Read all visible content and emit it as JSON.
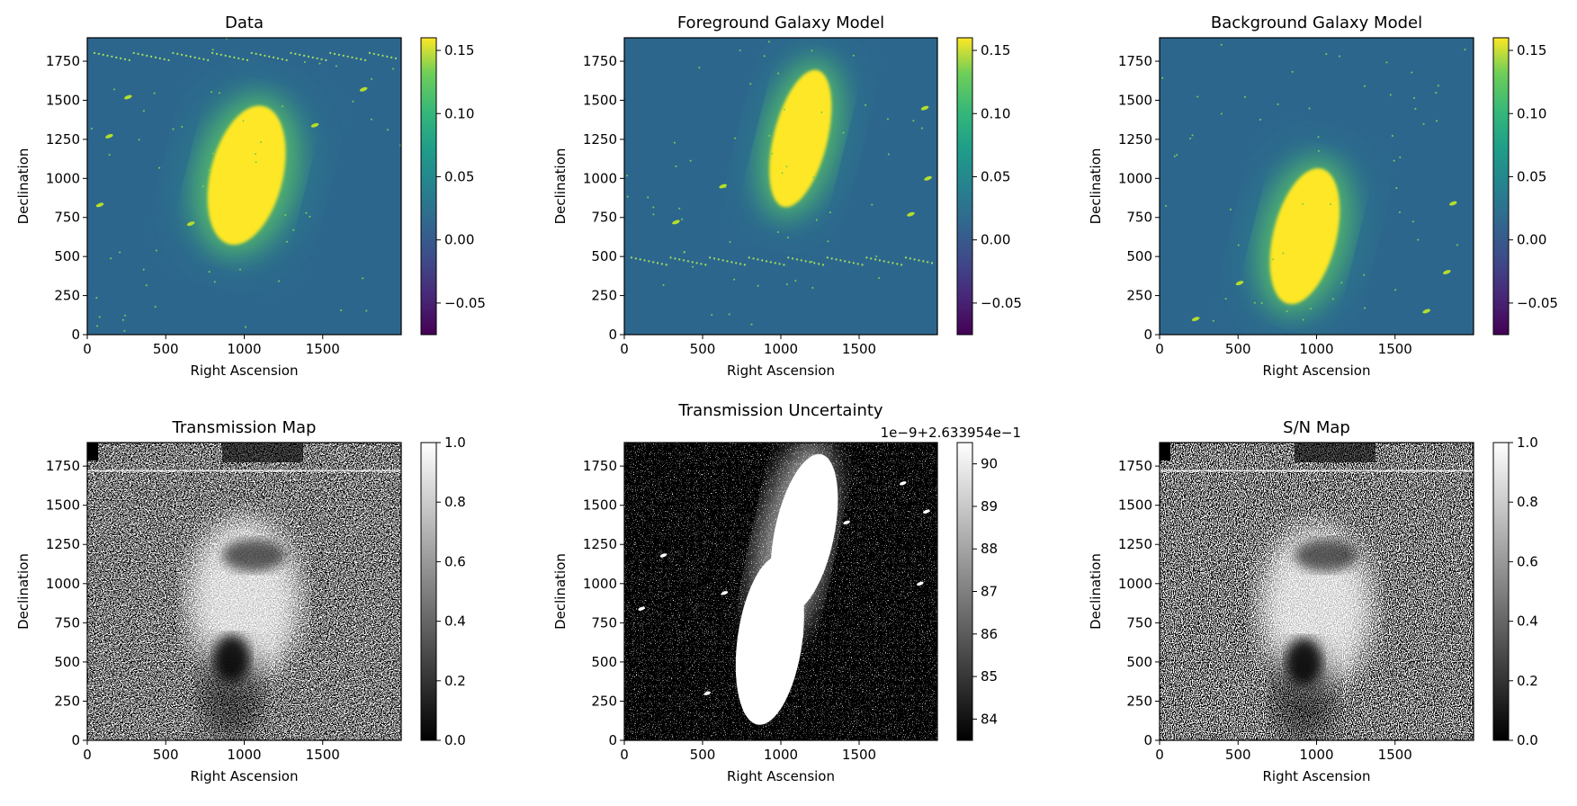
{
  "chart_data": [
    {
      "type": "heatmap",
      "title": "Data",
      "xlabel": "Right Ascension",
      "ylabel": "Declination",
      "xlim": [
        0,
        2000
      ],
      "ylim": [
        0,
        1900
      ],
      "xticks": [
        0,
        500,
        1000,
        1500
      ],
      "yticks": [
        0,
        250,
        500,
        750,
        1000,
        1250,
        1500,
        1750
      ],
      "colormap": "viridis",
      "colorbar": {
        "range": [
          -0.075,
          0.16
        ],
        "ticks": [
          -0.05,
          0.0,
          0.05,
          0.1,
          0.15
        ],
        "tick_labels": [
          "−0.05",
          "0.00",
          "0.05",
          "0.10",
          "0.15"
        ]
      },
      "features": {
        "galaxy": {
          "shape": "tilted elongated blob",
          "x_range": [
            780,
            1250
          ],
          "y_range": [
            560,
            1480
          ]
        },
        "streak": {
          "y": 1780
        },
        "point_sources": [
          [
            260,
            1520
          ],
          [
            140,
            1270
          ],
          [
            1450,
            1340
          ],
          [
            1760,
            1570
          ],
          [
            80,
            830
          ],
          [
            660,
            710
          ]
        ]
      }
    },
    {
      "type": "heatmap",
      "title": "Foreground Galaxy Model",
      "xlabel": "Right Ascension",
      "ylabel": "Declination",
      "xlim": [
        0,
        2000
      ],
      "ylim": [
        0,
        1900
      ],
      "xticks": [
        0,
        500,
        1000,
        1500
      ],
      "yticks": [
        0,
        250,
        500,
        750,
        1000,
        1250,
        1500,
        1750
      ],
      "colormap": "viridis",
      "colorbar": {
        "range": [
          -0.075,
          0.16
        ],
        "ticks": [
          -0.05,
          0.0,
          0.05,
          0.1,
          0.15
        ],
        "tick_labels": [
          "−0.05",
          "0.00",
          "0.05",
          "0.10",
          "0.15"
        ]
      },
      "features": {
        "galaxy": {
          "shape": "tilted elongated blob",
          "x_range": [
            950,
            1300
          ],
          "y_range": [
            800,
            1710
          ]
        },
        "streak": {
          "y": 470
        },
        "point_sources": [
          [
            630,
            950
          ],
          [
            330,
            720
          ],
          [
            1830,
            770
          ],
          [
            1940,
            1000
          ],
          [
            1920,
            1450
          ]
        ]
      }
    },
    {
      "type": "heatmap",
      "title": "Background Galaxy Model",
      "xlabel": "Right Ascension",
      "ylabel": "Declination",
      "xlim": [
        0,
        2000
      ],
      "ylim": [
        0,
        1900
      ],
      "xticks": [
        0,
        500,
        1000,
        1500
      ],
      "yticks": [
        0,
        250,
        500,
        750,
        1000,
        1250,
        1500,
        1750
      ],
      "colormap": "viridis",
      "colorbar": {
        "range": [
          -0.075,
          0.16
        ],
        "ticks": [
          -0.05,
          0.0,
          0.05,
          0.1,
          0.15
        ],
        "tick_labels": [
          "−0.05",
          "0.00",
          "0.05",
          "0.10",
          "0.15"
        ]
      },
      "features": {
        "galaxy": {
          "shape": "tilted elongated blob",
          "x_range": [
            720,
            1130
          ],
          "y_range": [
            180,
            1080
          ]
        },
        "point_sources": [
          [
            510,
            330
          ],
          [
            230,
            100
          ],
          [
            1870,
            840
          ],
          [
            1830,
            400
          ],
          [
            1700,
            150
          ]
        ]
      }
    },
    {
      "type": "heatmap",
      "title": "Transmission Map",
      "xlabel": "Right Ascension",
      "ylabel": "Declination",
      "xlim": [
        0,
        2000
      ],
      "ylim": [
        0,
        1900
      ],
      "xticks": [
        0,
        500,
        1000,
        1500
      ],
      "yticks": [
        0,
        250,
        500,
        750,
        1000,
        1250,
        1500,
        1750
      ],
      "colormap": "gray",
      "colorbar": {
        "range": [
          0,
          1
        ],
        "ticks": [
          0.0,
          0.2,
          0.4,
          0.6,
          0.8,
          1.0
        ],
        "tick_labels": [
          "0.0",
          "0.2",
          "0.4",
          "0.6",
          "0.8",
          "1.0"
        ]
      },
      "features": {
        "bright_region": {
          "x": 1000,
          "y": 900
        },
        "dark_core": {
          "x": 920,
          "y": 520
        }
      }
    },
    {
      "type": "heatmap",
      "title": "Transmission Uncertainty",
      "xlabel": "Right Ascension",
      "ylabel": "Declination",
      "xlim": [
        0,
        2000
      ],
      "ylim": [
        0,
        1900
      ],
      "xticks": [
        0,
        500,
        1000,
        1500
      ],
      "yticks": [
        0,
        250,
        500,
        750,
        1000,
        1250,
        1500,
        1750
      ],
      "colormap": "gray",
      "colorbar": {
        "range": [
          83.5,
          90.5
        ],
        "ticks": [
          84,
          85,
          86,
          87,
          88,
          89,
          90
        ],
        "tick_labels": [
          "84",
          "85",
          "86",
          "87",
          "88",
          "89",
          "90"
        ],
        "offset_text": "1e−9+2.633954e−1"
      },
      "features": {
        "combined_galaxies": {
          "x_range": [
            770,
            1300
          ],
          "y_range": [
            180,
            1720
          ]
        }
      }
    },
    {
      "type": "heatmap",
      "title": "S/N Map",
      "xlabel": "Right Ascension",
      "ylabel": "Declination",
      "xlim": [
        0,
        2000
      ],
      "ylim": [
        0,
        1900
      ],
      "xticks": [
        0,
        500,
        1000,
        1500
      ],
      "yticks": [
        0,
        250,
        500,
        750,
        1000,
        1250,
        1500,
        1750
      ],
      "colormap": "gray",
      "colorbar": {
        "range": [
          0,
          1
        ],
        "ticks": [
          0.0,
          0.2,
          0.4,
          0.6,
          0.8,
          1.0
        ],
        "tick_labels": [
          "0.0",
          "0.2",
          "0.4",
          "0.6",
          "0.8",
          "1.0"
        ]
      },
      "features": {
        "bright_region": {
          "x": 1000,
          "y": 850
        },
        "dark_core": {
          "x": 920,
          "y": 500
        }
      }
    }
  ]
}
